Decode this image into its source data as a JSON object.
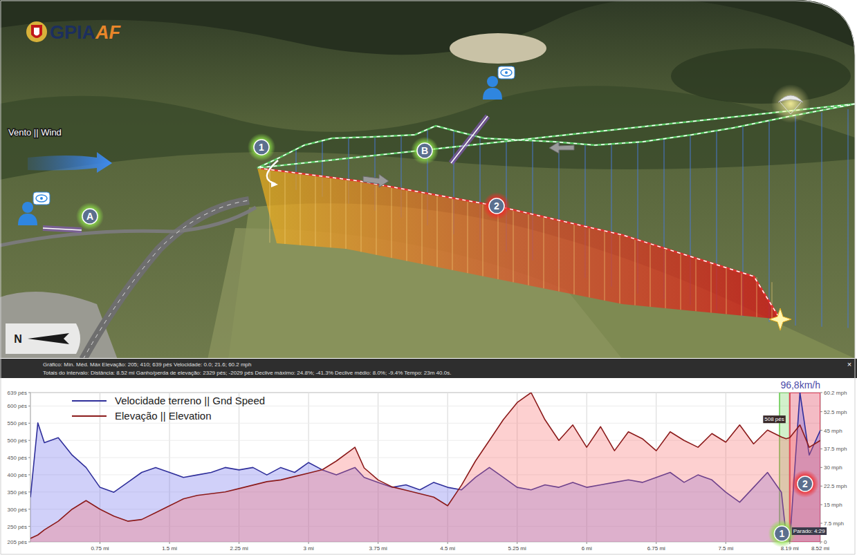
{
  "map": {
    "logo": "GPIAAF",
    "wind_label": "Vento || Wind",
    "compass": "N",
    "track_points": [
      "1",
      "2"
    ],
    "witnesses": [
      "A",
      "B"
    ]
  },
  "stats_bar": {
    "lines": [
      "Gráfico: Mín. Méd. Máx   Elevação: 205; 410; 639 pés   Velocidade: 0.0; 21.6; 60.2 mph",
      "Totais do intervalo: Distância: 8.52 mi   Ganho/perda de elevação: 2329 pés; -2029 pés   Declive máximo: 24.8%; -41.3%   Declive médio: 8.0%; -9.4%   Tempo: 23m 40.0s."
    ],
    "close": "×"
  },
  "chart_data": {
    "type": "area",
    "legend": "upper left",
    "grid": true,
    "x": [
      0,
      0.08,
      0.15,
      0.3,
      0.45,
      0.6,
      0.75,
      0.9,
      1.05,
      1.2,
      1.35,
      1.5,
      1.65,
      1.8,
      1.95,
      2.1,
      2.25,
      2.4,
      2.55,
      2.7,
      2.85,
      3.0,
      3.15,
      3.3,
      3.5,
      3.6,
      3.75,
      3.9,
      4.05,
      4.2,
      4.35,
      4.5,
      4.65,
      4.8,
      4.95,
      5.1,
      5.25,
      5.4,
      5.55,
      5.7,
      5.85,
      6.0,
      6.15,
      6.3,
      6.45,
      6.6,
      6.75,
      6.9,
      7.05,
      7.2,
      7.35,
      7.5,
      7.65,
      7.8,
      7.95,
      8.1,
      8.15,
      8.19,
      8.3,
      8.4,
      8.52
    ],
    "xlim": [
      0,
      8.52
    ],
    "xticks": [
      {
        "value": 0.75,
        "label": "0.75 mi"
      },
      {
        "value": 1.5,
        "label": "1.5 mi"
      },
      {
        "value": 2.25,
        "label": "2.25 mi"
      },
      {
        "value": 3,
        "label": "3 mi"
      },
      {
        "value": 3.75,
        "label": "3.75 mi"
      },
      {
        "value": 4.5,
        "label": "4.5 mi"
      },
      {
        "value": 5.25,
        "label": "5.25 mi"
      },
      {
        "value": 6,
        "label": "6 mi"
      },
      {
        "value": 6.75,
        "label": "6.75 mi"
      },
      {
        "value": 7.5,
        "label": "7.5 mi"
      },
      {
        "value": 8.19,
        "label": "8.19 mi"
      },
      {
        "value": 8.52,
        "label": "8.52 mi"
      }
    ],
    "ylim": [
      205,
      639
    ],
    "yticks": [
      {
        "value": 205,
        "label": "205 pés"
      },
      {
        "value": 250,
        "label": "250 pés"
      },
      {
        "value": 300,
        "label": "300 pés"
      },
      {
        "value": 350,
        "label": "350 pés"
      },
      {
        "value": 400,
        "label": "400 pés"
      },
      {
        "value": 450,
        "label": "450 pés"
      },
      {
        "value": 500,
        "label": "500 pés"
      },
      {
        "value": 550,
        "label": "550 pés"
      },
      {
        "value": 600,
        "label": "600 pés"
      },
      {
        "value": 639,
        "label": "639 pés"
      }
    ],
    "y2lim": [
      0,
      60.2
    ],
    "y2ticks": [
      {
        "value": 0,
        "label": "0"
      },
      {
        "value": 7.5,
        "label": "7.5 mph"
      },
      {
        "value": 15,
        "label": "15 mph"
      },
      {
        "value": 22.5,
        "label": "22.5 mph"
      },
      {
        "value": 30,
        "label": "30 mph"
      },
      {
        "value": 37.5,
        "label": "37.5 mph"
      },
      {
        "value": 45,
        "label": "45 mph"
      },
      {
        "value": 52.5,
        "label": "52.5 mph"
      },
      {
        "value": 60.2,
        "label": "60.2 mph"
      }
    ],
    "series": [
      {
        "name": "Velocidade terreno || Gnd Speed",
        "color": "#2e2e9a",
        "axis": "y2",
        "values": [
          18,
          48,
          40,
          42,
          35,
          30,
          22,
          20,
          24,
          28,
          30,
          28,
          26,
          27,
          28,
          30,
          29,
          30,
          27,
          30,
          28,
          32,
          29,
          27,
          30,
          26,
          24,
          22,
          23,
          21,
          24,
          22,
          21,
          26,
          30,
          26,
          22,
          21,
          23,
          22,
          24,
          22,
          23,
          24,
          25,
          24,
          26,
          28,
          24,
          27,
          25,
          20,
          16,
          22,
          28,
          20,
          3,
          0,
          60.2,
          35,
          45
        ]
      },
      {
        "name": "Elevação || Elevation",
        "color": "#8b1a1a",
        "values": [
          215,
          225,
          240,
          265,
          300,
          325,
          300,
          280,
          265,
          270,
          290,
          310,
          330,
          340,
          345,
          350,
          360,
          370,
          380,
          385,
          395,
          405,
          415,
          440,
          480,
          420,
          385,
          365,
          355,
          345,
          335,
          310,
          370,
          440,
          500,
          560,
          610,
          639,
          560,
          500,
          545,
          480,
          540,
          470,
          525,
          505,
          470,
          525,
          500,
          480,
          520,
          495,
          545,
          490,
          530,
          510,
          505,
          508,
          545,
          480,
          500
        ]
      }
    ],
    "ranges": [
      {
        "label": "1",
        "from": 8.08,
        "to": 8.19,
        "color": "#7fd36b"
      },
      {
        "label": "2",
        "from": 8.19,
        "to": 8.52,
        "color": "#e0405a"
      }
    ],
    "annotations": [
      {
        "text": "96,8km/h",
        "x": 8.3,
        "y2": 60.2
      },
      {
        "text": "508 pés",
        "x": 8.19,
        "y": 508
      },
      {
        "text": "Parado: 4:29",
        "x": 8.19,
        "y2": 0
      }
    ]
  }
}
